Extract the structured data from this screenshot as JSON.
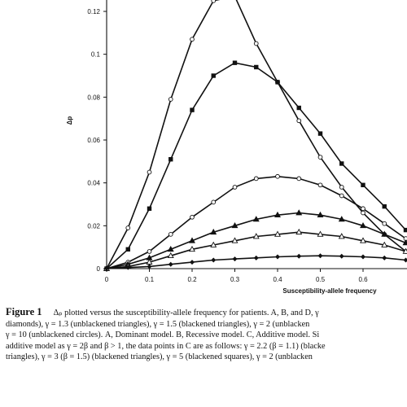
{
  "chart_data": {
    "type": "line",
    "xlabel": "Susceptibility-allele frequency",
    "ylabel": "Δp",
    "xlim": [
      0,
      0.7
    ],
    "ylim": [
      0,
      0.13
    ],
    "x_ticks": [
      "0",
      "0.1",
      "0.2",
      "0.3",
      "0.4",
      "0.5",
      "0.6"
    ],
    "x_tick_values": [
      0,
      0.1,
      0.2,
      0.3,
      0.4,
      0.5,
      0.6
    ],
    "y_ticks": [
      "0",
      "0.02",
      "0.04",
      "0.06",
      "0.08",
      "0.1",
      "0.12"
    ],
    "y_tick_values": [
      0,
      0.02,
      0.04,
      0.06,
      0.08,
      0.1,
      0.12
    ],
    "grid": false,
    "series": [
      {
        "marker": "open-circle",
        "x": [
          0,
          0.05,
          0.1,
          0.15,
          0.2,
          0.25,
          0.3,
          0.35,
          0.4,
          0.45,
          0.5,
          0.55,
          0.6,
          0.65,
          0.7
        ],
        "y": [
          0,
          0.019,
          0.045,
          0.079,
          0.107,
          0.125,
          0.127,
          0.105,
          0.087,
          0.069,
          0.052,
          0.038,
          0.026,
          0.016,
          0.008
        ]
      },
      {
        "marker": "filled-square",
        "x": [
          0,
          0.05,
          0.1,
          0.15,
          0.2,
          0.25,
          0.3,
          0.35,
          0.4,
          0.45,
          0.5,
          0.55,
          0.6,
          0.65,
          0.7
        ],
        "y": [
          0,
          0.009,
          0.028,
          0.051,
          0.074,
          0.09,
          0.096,
          0.094,
          0.087,
          0.075,
          0.063,
          0.049,
          0.039,
          0.029,
          0.018
        ]
      },
      {
        "marker": "open-circle",
        "x": [
          0,
          0.05,
          0.1,
          0.15,
          0.2,
          0.25,
          0.3,
          0.35,
          0.4,
          0.45,
          0.5,
          0.55,
          0.6,
          0.65,
          0.7
        ],
        "y": [
          0,
          0.003,
          0.008,
          0.016,
          0.024,
          0.031,
          0.038,
          0.042,
          0.043,
          0.042,
          0.039,
          0.034,
          0.028,
          0.021,
          0.014
        ]
      },
      {
        "marker": "filled-triangle",
        "x": [
          0,
          0.05,
          0.1,
          0.15,
          0.2,
          0.25,
          0.3,
          0.35,
          0.4,
          0.45,
          0.5,
          0.55,
          0.6,
          0.65,
          0.7
        ],
        "y": [
          0,
          0.002,
          0.005,
          0.009,
          0.013,
          0.017,
          0.02,
          0.023,
          0.025,
          0.026,
          0.025,
          0.023,
          0.02,
          0.016,
          0.012
        ]
      },
      {
        "marker": "open-triangle",
        "x": [
          0,
          0.05,
          0.1,
          0.15,
          0.2,
          0.25,
          0.3,
          0.35,
          0.4,
          0.45,
          0.5,
          0.55,
          0.6,
          0.65,
          0.7
        ],
        "y": [
          0,
          0.001,
          0.003,
          0.006,
          0.009,
          0.011,
          0.013,
          0.015,
          0.016,
          0.017,
          0.016,
          0.015,
          0.013,
          0.011,
          0.008
        ]
      },
      {
        "marker": "filled-diamond",
        "x": [
          0,
          0.05,
          0.1,
          0.15,
          0.2,
          0.25,
          0.3,
          0.35,
          0.4,
          0.45,
          0.5,
          0.55,
          0.6,
          0.65,
          0.7
        ],
        "y": [
          0,
          0.0005,
          0.001,
          0.002,
          0.003,
          0.004,
          0.0045,
          0.005,
          0.0055,
          0.0058,
          0.006,
          0.0058,
          0.0055,
          0.005,
          0.004
        ]
      }
    ]
  },
  "caption": {
    "fig_label": "Figure 1",
    "lines": [
      "Δₚ plotted versus the susceptibility-allele frequency for patients. A, B, and D, γ",
      "diamonds), γ = 1.3 (unblackened triangles), γ = 1.5 (blackened triangles), γ = 2 (unblacken",
      "γ = 10 (unblackened circles). A, Dominant model. B, Recessive model. C, Additive model. Si",
      "additive model as γ = 2β and β > 1, the data points in C are as follows: γ = 2.2 (β = 1.1) (blacke",
      "triangles), γ = 3 (β = 1.5) (blackened triangles), γ = 5 (blackened squares), γ = 2 (unblacken"
    ]
  }
}
